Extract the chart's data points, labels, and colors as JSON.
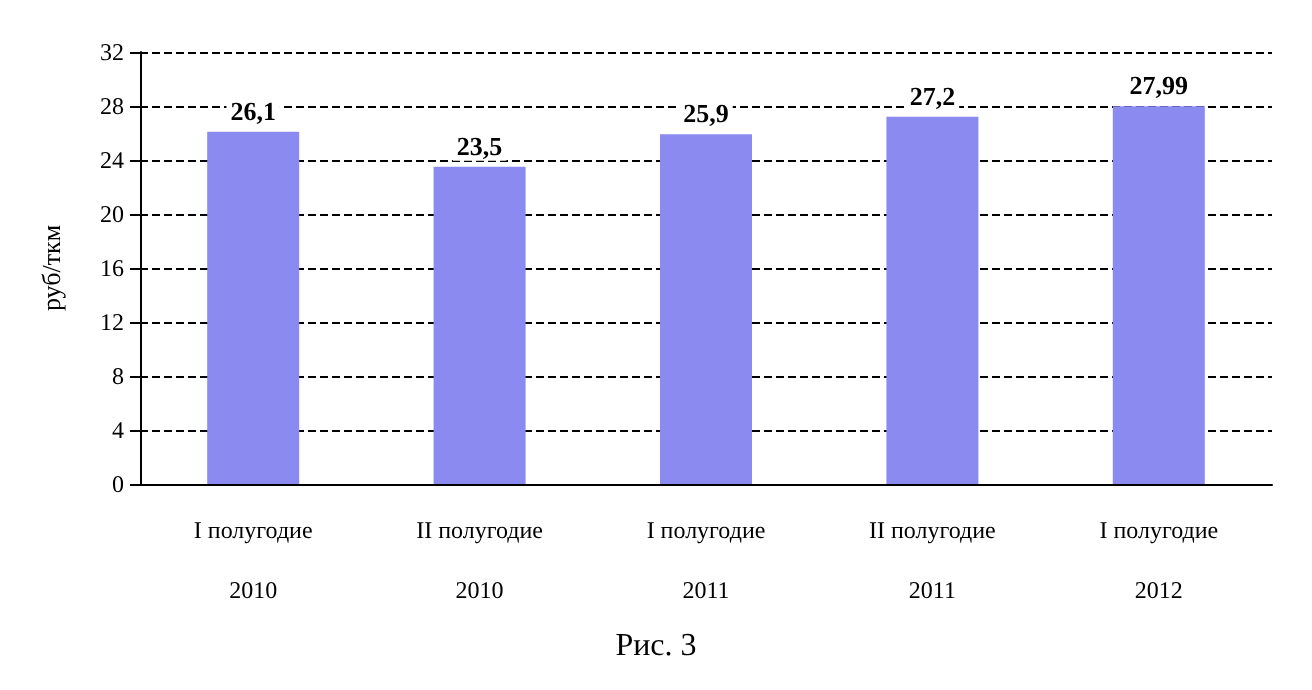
{
  "chart_data": {
    "type": "bar",
    "ylabel": "руб/ткм",
    "annotations": [
      "Рис. 3"
    ],
    "categories": [
      "I полугодие\n2010",
      "II полугодие\n2010",
      "I полугодие\n2011",
      "II полугодие\n2011",
      "I полугодие\n2012"
    ],
    "values": [
      26.1,
      23.5,
      25.9,
      27.2,
      27.99
    ],
    "value_labels": [
      "26,1",
      "23,5",
      "25,9",
      "27,2",
      "27,99"
    ],
    "color": "#8a8af0",
    "ylim": [
      0,
      32
    ],
    "yticks": [
      0,
      4,
      8,
      12,
      16,
      20,
      24,
      28,
      32
    ],
    "grid": "y",
    "line_style": "dashed"
  }
}
